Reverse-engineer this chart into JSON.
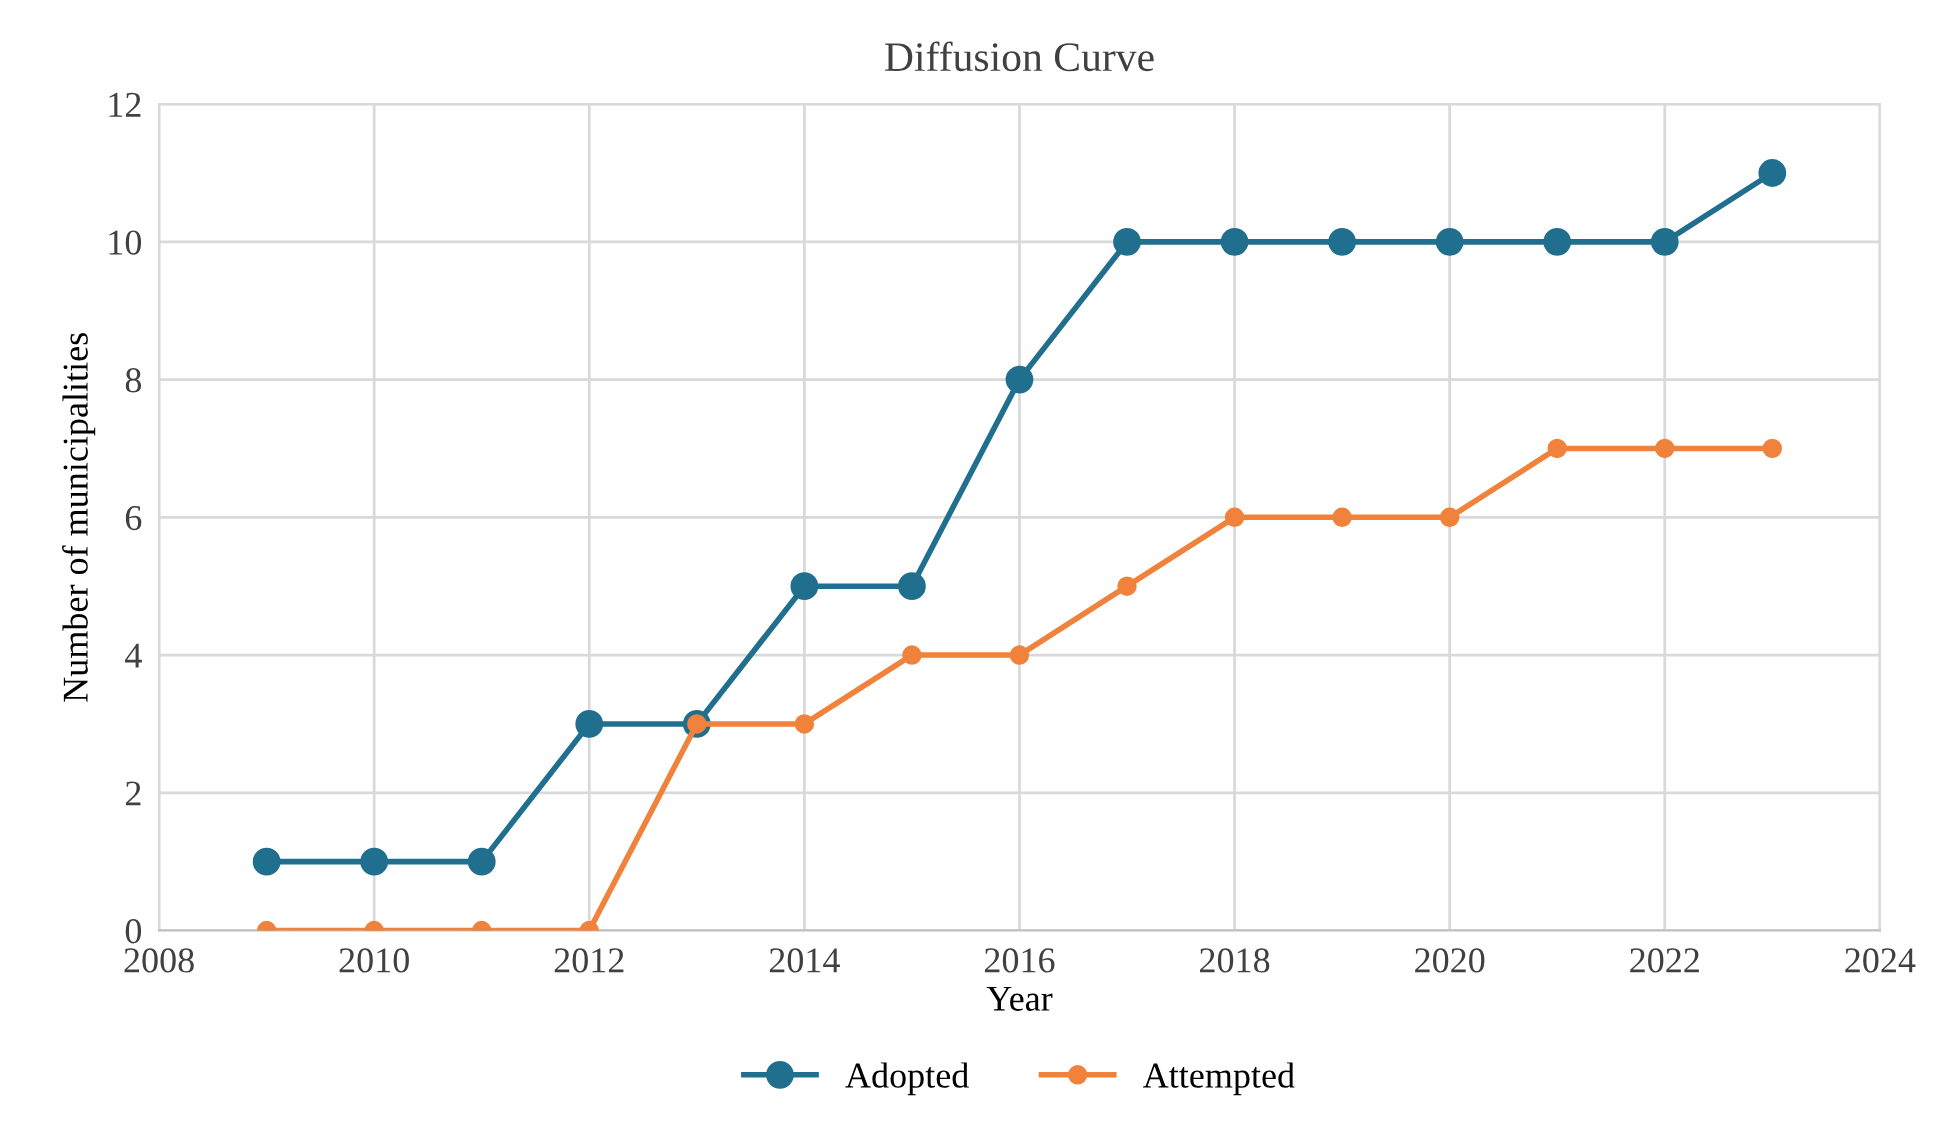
{
  "chart_data": {
    "type": "line",
    "title": "Diffusion Curve",
    "xlabel": "Year",
    "ylabel": "Number of municipalities",
    "x": [
      2009,
      2010,
      2011,
      2012,
      2013,
      2014,
      2015,
      2016,
      2017,
      2018,
      2019,
      2020,
      2021,
      2022,
      2023
    ],
    "series": [
      {
        "name": "Adopted",
        "color": "#216f8e",
        "values": [
          1,
          1,
          1,
          3,
          3,
          5,
          5,
          8,
          10,
          10,
          10,
          10,
          10,
          10,
          11
        ]
      },
      {
        "name": "Attempted",
        "color": "#f0823c",
        "values": [
          0,
          0,
          0,
          0,
          3,
          3,
          4,
          4,
          5,
          6,
          6,
          6,
          7,
          7,
          7
        ]
      }
    ],
    "xlim": [
      2008,
      2024
    ],
    "xticks": [
      2008,
      2010,
      2012,
      2014,
      2016,
      2018,
      2020,
      2022,
      2024
    ],
    "ylim": [
      0,
      12
    ],
    "yticks": [
      0,
      2,
      4,
      6,
      8,
      10,
      12
    ],
    "grid": true,
    "legend": "bottom",
    "marker": "circle",
    "line_style": "solid"
  }
}
